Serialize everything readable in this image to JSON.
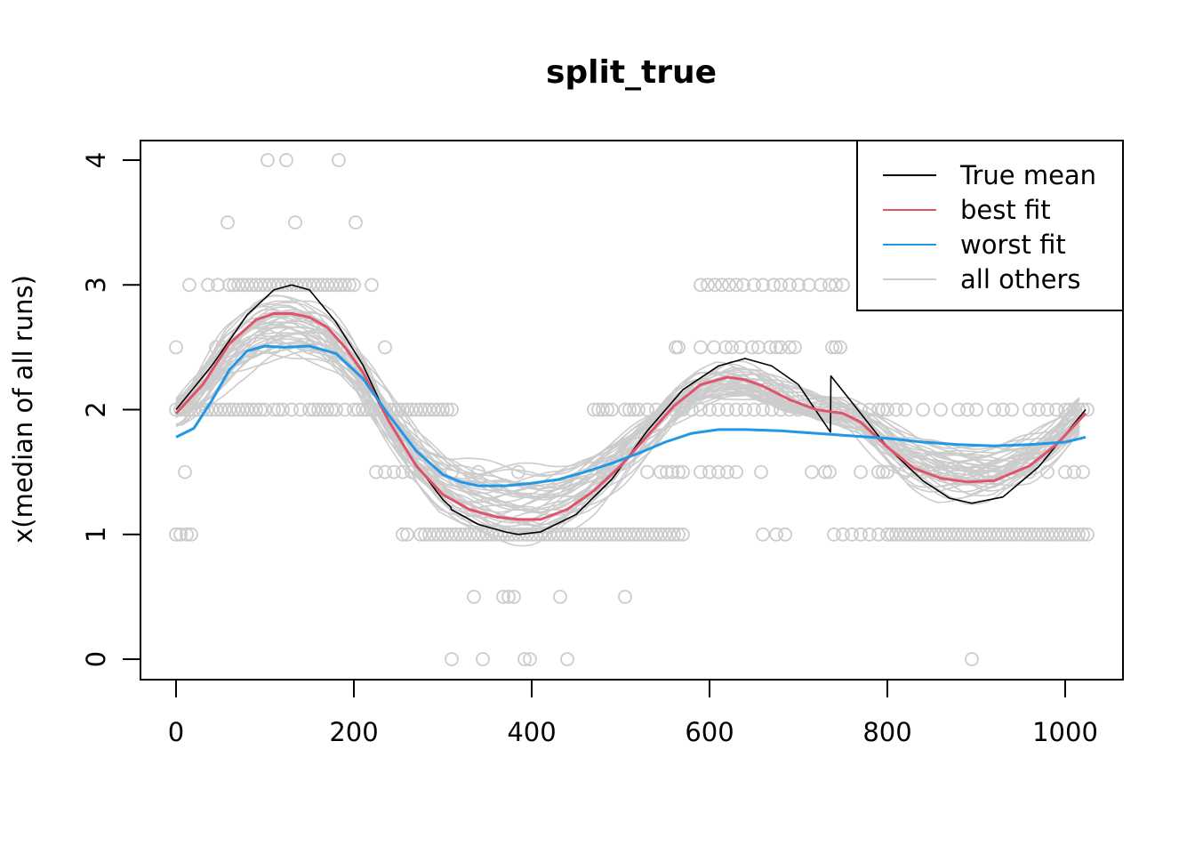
{
  "chart_data": {
    "type": "scatter",
    "title": "split_true",
    "xlabel": "",
    "ylabel": "x(median of all runs)",
    "xlim": [
      -20,
      1045
    ],
    "ylim": [
      -0.15,
      4.16
    ],
    "x_ticks": [
      0,
      200,
      400,
      600,
      800,
      1000
    ],
    "y_ticks": [
      0,
      1,
      2,
      3,
      4
    ],
    "x_tick_labels": [
      "0",
      "200",
      "400",
      "600",
      "800",
      "1000"
    ],
    "y_tick_labels": [
      "0",
      "1",
      "2",
      "3",
      "4"
    ],
    "grid": false,
    "legend_position": "top-right",
    "legend": [
      {
        "label": "True mean",
        "color": "#000000"
      },
      {
        "label": "best fit",
        "color": "#DF536B"
      },
      {
        "label": "worst fit",
        "color": "#2297E6"
      },
      {
        "label": "all others",
        "color": "#CCCCCC"
      }
    ],
    "points": {
      "color": "#CCCCCC",
      "groups": [
        {
          "y": 4,
          "x": [
            103,
            124,
            183
          ]
        },
        {
          "y": 3.5,
          "x": [
            58,
            134,
            202
          ]
        },
        {
          "y": 3,
          "x": [
            15,
            36,
            47,
            60,
            65,
            70,
            75,
            80,
            85,
            90,
            95,
            100,
            105,
            110,
            115,
            120,
            125,
            130,
            135,
            140,
            145,
            150,
            155,
            160,
            165,
            170,
            175,
            180,
            185,
            190,
            195,
            200,
            220,
            590,
            598,
            606,
            614,
            622,
            630,
            638,
            650,
            660,
            672,
            680,
            690,
            700,
            712,
            725,
            735,
            742,
            750
          ]
        },
        {
          "y": 2.5,
          "x": [
            0,
            45,
            52,
            110,
            150,
            180,
            235,
            562,
            565,
            590,
            605,
            618,
            625,
            635,
            648,
            655,
            668,
            675,
            680,
            690,
            696,
            738,
            742,
            747
          ]
        },
        {
          "y": 2,
          "x": [
            0,
            5,
            10,
            15,
            20,
            25,
            30,
            35,
            40,
            45,
            50,
            55,
            60,
            65,
            70,
            75,
            80,
            85,
            90,
            95,
            100,
            110,
            115,
            120,
            130,
            140,
            150,
            155,
            160,
            165,
            170,
            175,
            180,
            190,
            200,
            205,
            210,
            215,
            220,
            225,
            230,
            235,
            240,
            245,
            250,
            255,
            260,
            265,
            270,
            275,
            280,
            285,
            290,
            295,
            300,
            305,
            310,
            470,
            475,
            480,
            485,
            490,
            505,
            510,
            515,
            520,
            530,
            540,
            550,
            560,
            570,
            580,
            590,
            600,
            610,
            620,
            630,
            640,
            650,
            660,
            670,
            680,
            690,
            700,
            710,
            720,
            730,
            740,
            750,
            760,
            770,
            780,
            790,
            795,
            800,
            810,
            820,
            840,
            860,
            880,
            890,
            900,
            920,
            930,
            940,
            960,
            970,
            980,
            990,
            1000,
            1005,
            1010,
            1015,
            1020,
            1025
          ]
        },
        {
          "y": 1.5,
          "x": [
            10,
            225,
            235,
            245,
            255,
            265,
            275,
            290,
            310,
            340,
            385,
            480,
            490,
            530,
            545,
            552,
            558,
            565,
            570,
            590,
            600,
            610,
            620,
            630,
            658,
            715,
            730,
            735,
            770,
            790,
            795,
            800,
            820,
            840,
            860,
            880,
            900,
            920,
            940,
            960,
            980,
            1000,
            1010,
            1020
          ]
        },
        {
          "y": 1,
          "x": [
            0,
            5,
            12,
            17,
            255,
            260,
            275,
            280,
            285,
            290,
            295,
            300,
            305,
            310,
            315,
            320,
            325,
            330,
            335,
            340,
            345,
            350,
            355,
            360,
            365,
            370,
            375,
            380,
            385,
            390,
            395,
            400,
            405,
            410,
            415,
            420,
            425,
            430,
            435,
            440,
            445,
            450,
            455,
            460,
            465,
            470,
            475,
            480,
            485,
            490,
            495,
            500,
            505,
            510,
            515,
            520,
            525,
            530,
            535,
            540,
            545,
            550,
            555,
            560,
            565,
            570,
            660,
            675,
            685,
            740,
            750,
            760,
            770,
            780,
            790,
            800,
            805,
            810,
            815,
            820,
            825,
            830,
            835,
            840,
            845,
            850,
            855,
            860,
            865,
            870,
            875,
            880,
            885,
            890,
            895,
            900,
            905,
            910,
            915,
            920,
            925,
            930,
            935,
            940,
            945,
            950,
            955,
            960,
            965,
            970,
            975,
            980,
            985,
            990,
            995,
            1000,
            1005,
            1010,
            1015,
            1020,
            1025
          ]
        },
        {
          "y": 0.5,
          "x": [
            335,
            368,
            374,
            380,
            432,
            505
          ]
        },
        {
          "y": 0,
          "x": [
            310,
            345,
            392,
            398,
            440,
            895
          ]
        }
      ]
    },
    "series": [
      {
        "name": "True mean",
        "color": "#000000",
        "x": [
          0,
          40,
          80,
          110,
          130,
          150,
          180,
          210,
          240,
          270,
          300,
          309,
          309.5,
          340,
          370,
          385,
          410,
          450,
          490,
          530,
          570,
          610,
          640,
          670,
          700,
          736,
          736.5,
          760,
          800,
          840,
          870,
          895,
          930,
          970,
          1000,
          1023
        ],
        "y": [
          2.0,
          2.35,
          2.76,
          2.96,
          3.0,
          2.96,
          2.7,
          2.36,
          1.9,
          1.56,
          1.28,
          1.22,
          1.2,
          1.08,
          1.02,
          1.0,
          1.02,
          1.16,
          1.44,
          1.83,
          2.16,
          2.35,
          2.41,
          2.35,
          2.2,
          1.82,
          2.27,
          2.06,
          1.7,
          1.43,
          1.29,
          1.25,
          1.3,
          1.54,
          1.8,
          2.0
        ]
      },
      {
        "name": "best fit",
        "color": "#DF536B",
        "x": [
          0,
          30,
          60,
          90,
          110,
          130,
          150,
          170,
          190,
          210,
          240,
          270,
          300,
          330,
          360,
          385,
          410,
          440,
          470,
          500,
          530,
          560,
          590,
          620,
          640,
          660,
          690,
          720,
          750,
          770,
          800,
          830,
          860,
          890,
          920,
          960,
          990,
          1023
        ],
        "y": [
          1.97,
          2.2,
          2.53,
          2.72,
          2.77,
          2.77,
          2.74,
          2.66,
          2.5,
          2.3,
          1.9,
          1.55,
          1.32,
          1.2,
          1.14,
          1.12,
          1.12,
          1.2,
          1.35,
          1.55,
          1.79,
          2.03,
          2.2,
          2.26,
          2.24,
          2.19,
          2.08,
          2.0,
          1.97,
          1.9,
          1.7,
          1.53,
          1.45,
          1.42,
          1.43,
          1.55,
          1.72,
          1.97
        ]
      },
      {
        "name": "worst fit",
        "color": "#2297E6",
        "x": [
          0,
          20,
          40,
          60,
          80,
          100,
          120,
          150,
          180,
          210,
          240,
          270,
          300,
          320,
          340,
          370,
          400,
          430,
          460,
          490,
          520,
          550,
          580,
          610,
          640,
          680,
          720,
          760,
          800,
          840,
          880,
          920,
          960,
          1000,
          1023
        ],
        "y": [
          1.78,
          1.85,
          2.07,
          2.32,
          2.47,
          2.51,
          2.5,
          2.51,
          2.45,
          2.25,
          1.95,
          1.67,
          1.48,
          1.42,
          1.39,
          1.39,
          1.41,
          1.44,
          1.5,
          1.57,
          1.65,
          1.74,
          1.81,
          1.84,
          1.84,
          1.83,
          1.81,
          1.79,
          1.77,
          1.74,
          1.72,
          1.71,
          1.72,
          1.74,
          1.78
        ]
      }
    ]
  }
}
